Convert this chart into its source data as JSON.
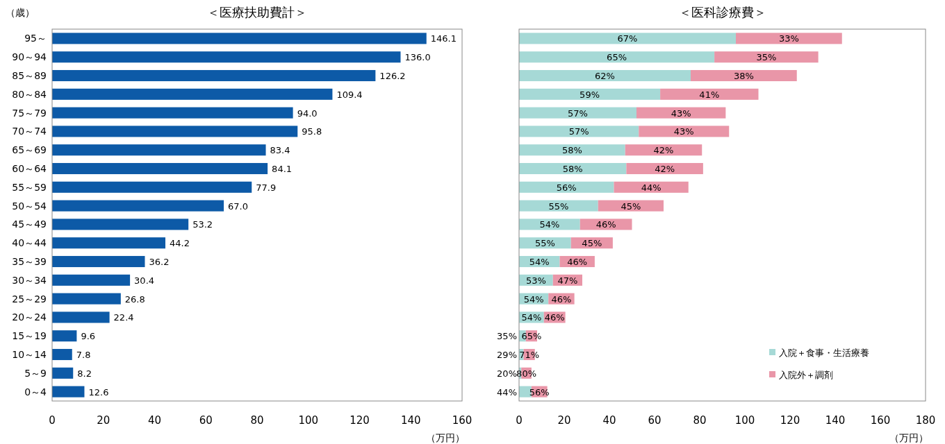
{
  "chart_data": [
    {
      "type": "bar",
      "orientation": "horizontal",
      "title": "＜医療扶助費計＞",
      "ylabel": "（歳）",
      "xlabel": "（万円）",
      "categories": [
        "95～",
        "90～94",
        "85～89",
        "80～84",
        "75～79",
        "70～74",
        "65～69",
        "60～64",
        "55～59",
        "50～54",
        "45～49",
        "40～44",
        "35～39",
        "30～34",
        "25～29",
        "20～24",
        "15～19",
        "10～14",
        "5～9",
        "0～4"
      ],
      "series": [
        {
          "color": "#0d5aa7",
          "values": [
            146.1,
            136.0,
            126.2,
            109.4,
            94.0,
            95.8,
            83.4,
            84.1,
            77.9,
            67.0,
            53.2,
            44.2,
            36.2,
            30.4,
            26.8,
            22.4,
            9.6,
            7.8,
            8.2,
            12.6
          ],
          "value_labels": [
            "146.1",
            "136.0",
            "126.2",
            "109.4",
            "94.0",
            "95.8",
            "83.4",
            "84.1",
            "77.9",
            "67.0",
            "53.2",
            "44.2",
            "36.2",
            "30.4",
            "26.8",
            "22.4",
            "9.6",
            "7.8",
            "8.2",
            "12.6"
          ]
        }
      ],
      "xlim": [
        0,
        160
      ],
      "xticks": [
        0,
        20,
        40,
        60,
        80,
        100,
        120,
        140,
        160
      ],
      "legend": false
    },
    {
      "type": "bar",
      "orientation": "horizontal",
      "stacked": true,
      "title": "＜医科診療費＞",
      "xlabel": "（万円）",
      "categories": [
        null,
        null,
        null,
        null,
        null,
        null,
        null,
        null,
        null,
        null,
        null,
        null,
        null,
        null,
        null,
        null,
        null,
        null,
        null,
        null
      ],
      "series": [
        {
          "name": "入院＋食事・生活療養",
          "color": "#a6d9d6",
          "values": [
            96,
            86.5,
            76,
            62.5,
            52,
            53,
            47,
            47.5,
            42,
            35,
            27,
            23,
            18,
            15,
            13,
            11,
            3,
            2,
            1,
            5.5
          ]
        },
        {
          "name": "入院外＋調剤",
          "color": "#e996a8",
          "values": [
            47,
            46,
            47,
            43.5,
            39.5,
            40,
            34,
            34,
            33,
            29,
            23,
            18.5,
            15.5,
            13,
            11.5,
            9.5,
            5,
            5,
            4.5,
            7
          ]
        }
      ],
      "annotations": [
        "67%",
        "33%",
        "65%",
        "35%",
        "62%",
        "38%",
        "59%",
        "41%",
        "57%",
        "43%",
        "57%",
        "43%",
        "58%",
        "42%",
        "58%",
        "42%",
        "56%",
        "44%",
        "55%",
        "45%",
        "54%",
        "46%",
        "55%",
        "45%",
        "54%",
        "46%",
        "53%",
        "47%",
        "54%",
        "46%",
        "54%",
        "46%",
        "35%",
        "65%",
        "29%",
        "71%",
        "20%",
        "80%",
        "44%",
        "56%"
      ],
      "xlim": [
        0,
        180
      ],
      "xticks": [
        0,
        20,
        40,
        60,
        80,
        100,
        120,
        140,
        160,
        180
      ],
      "tick_labels": "x",
      "legend": "bottom right"
    }
  ]
}
